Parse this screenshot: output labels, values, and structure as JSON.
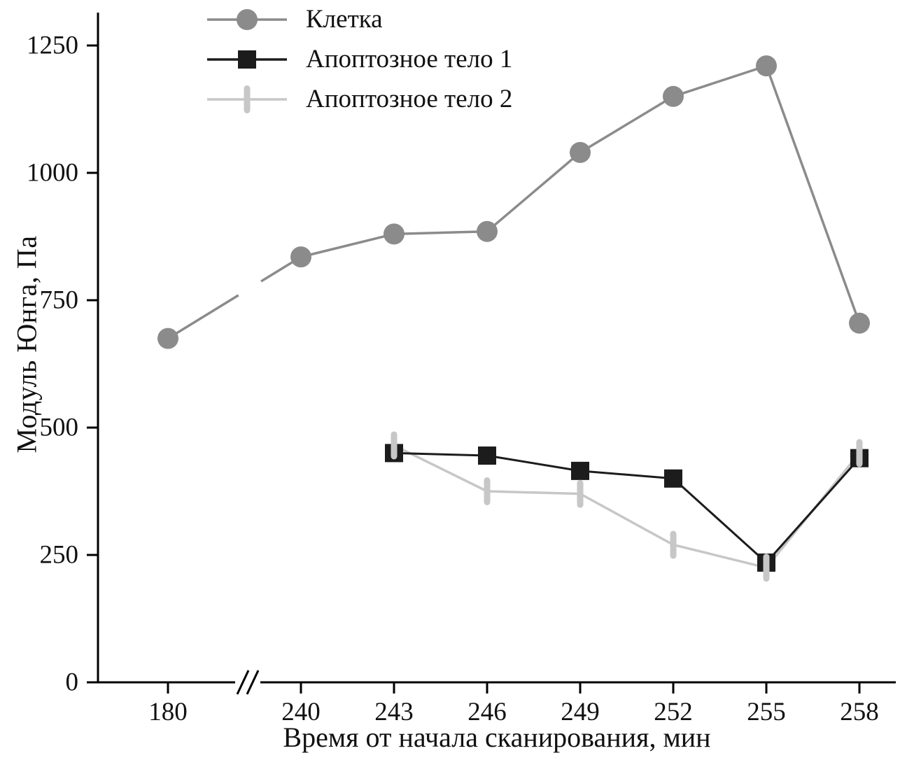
{
  "chart_data": {
    "type": "line",
    "title": "",
    "xlabel": "Время от начала сканирования, мин",
    "ylabel": "Модуль Юнга, Па",
    "x_ticks": [
      180,
      240,
      243,
      246,
      249,
      252,
      255,
      258
    ],
    "x_axis_break_between": [
      180,
      240
    ],
    "y_ticks": [
      0,
      250,
      500,
      750,
      1000,
      1250
    ],
    "ylim": [
      0,
      1250
    ],
    "grid": false,
    "legend_position": "top-left inside",
    "series": [
      {
        "name": "Клетка",
        "marker": "circle",
        "color": "#8b8b8b",
        "x": [
          180,
          240,
          243,
          246,
          249,
          252,
          255,
          258
        ],
        "values": [
          675,
          835,
          880,
          885,
          1040,
          1150,
          1210,
          705
        ]
      },
      {
        "name": "Апоптозное тело 1",
        "marker": "square",
        "color": "#1c1c1c",
        "x": [
          243,
          246,
          249,
          252,
          255,
          258
        ],
        "values": [
          450,
          445,
          415,
          400,
          235,
          440
        ]
      },
      {
        "name": "Апоптозное тело 2",
        "marker": "vertical-dash",
        "color": "#c7c7c7",
        "x": [
          243,
          246,
          249,
          252,
          255,
          258
        ],
        "values": [
          465,
          375,
          370,
          270,
          225,
          450
        ]
      }
    ]
  }
}
